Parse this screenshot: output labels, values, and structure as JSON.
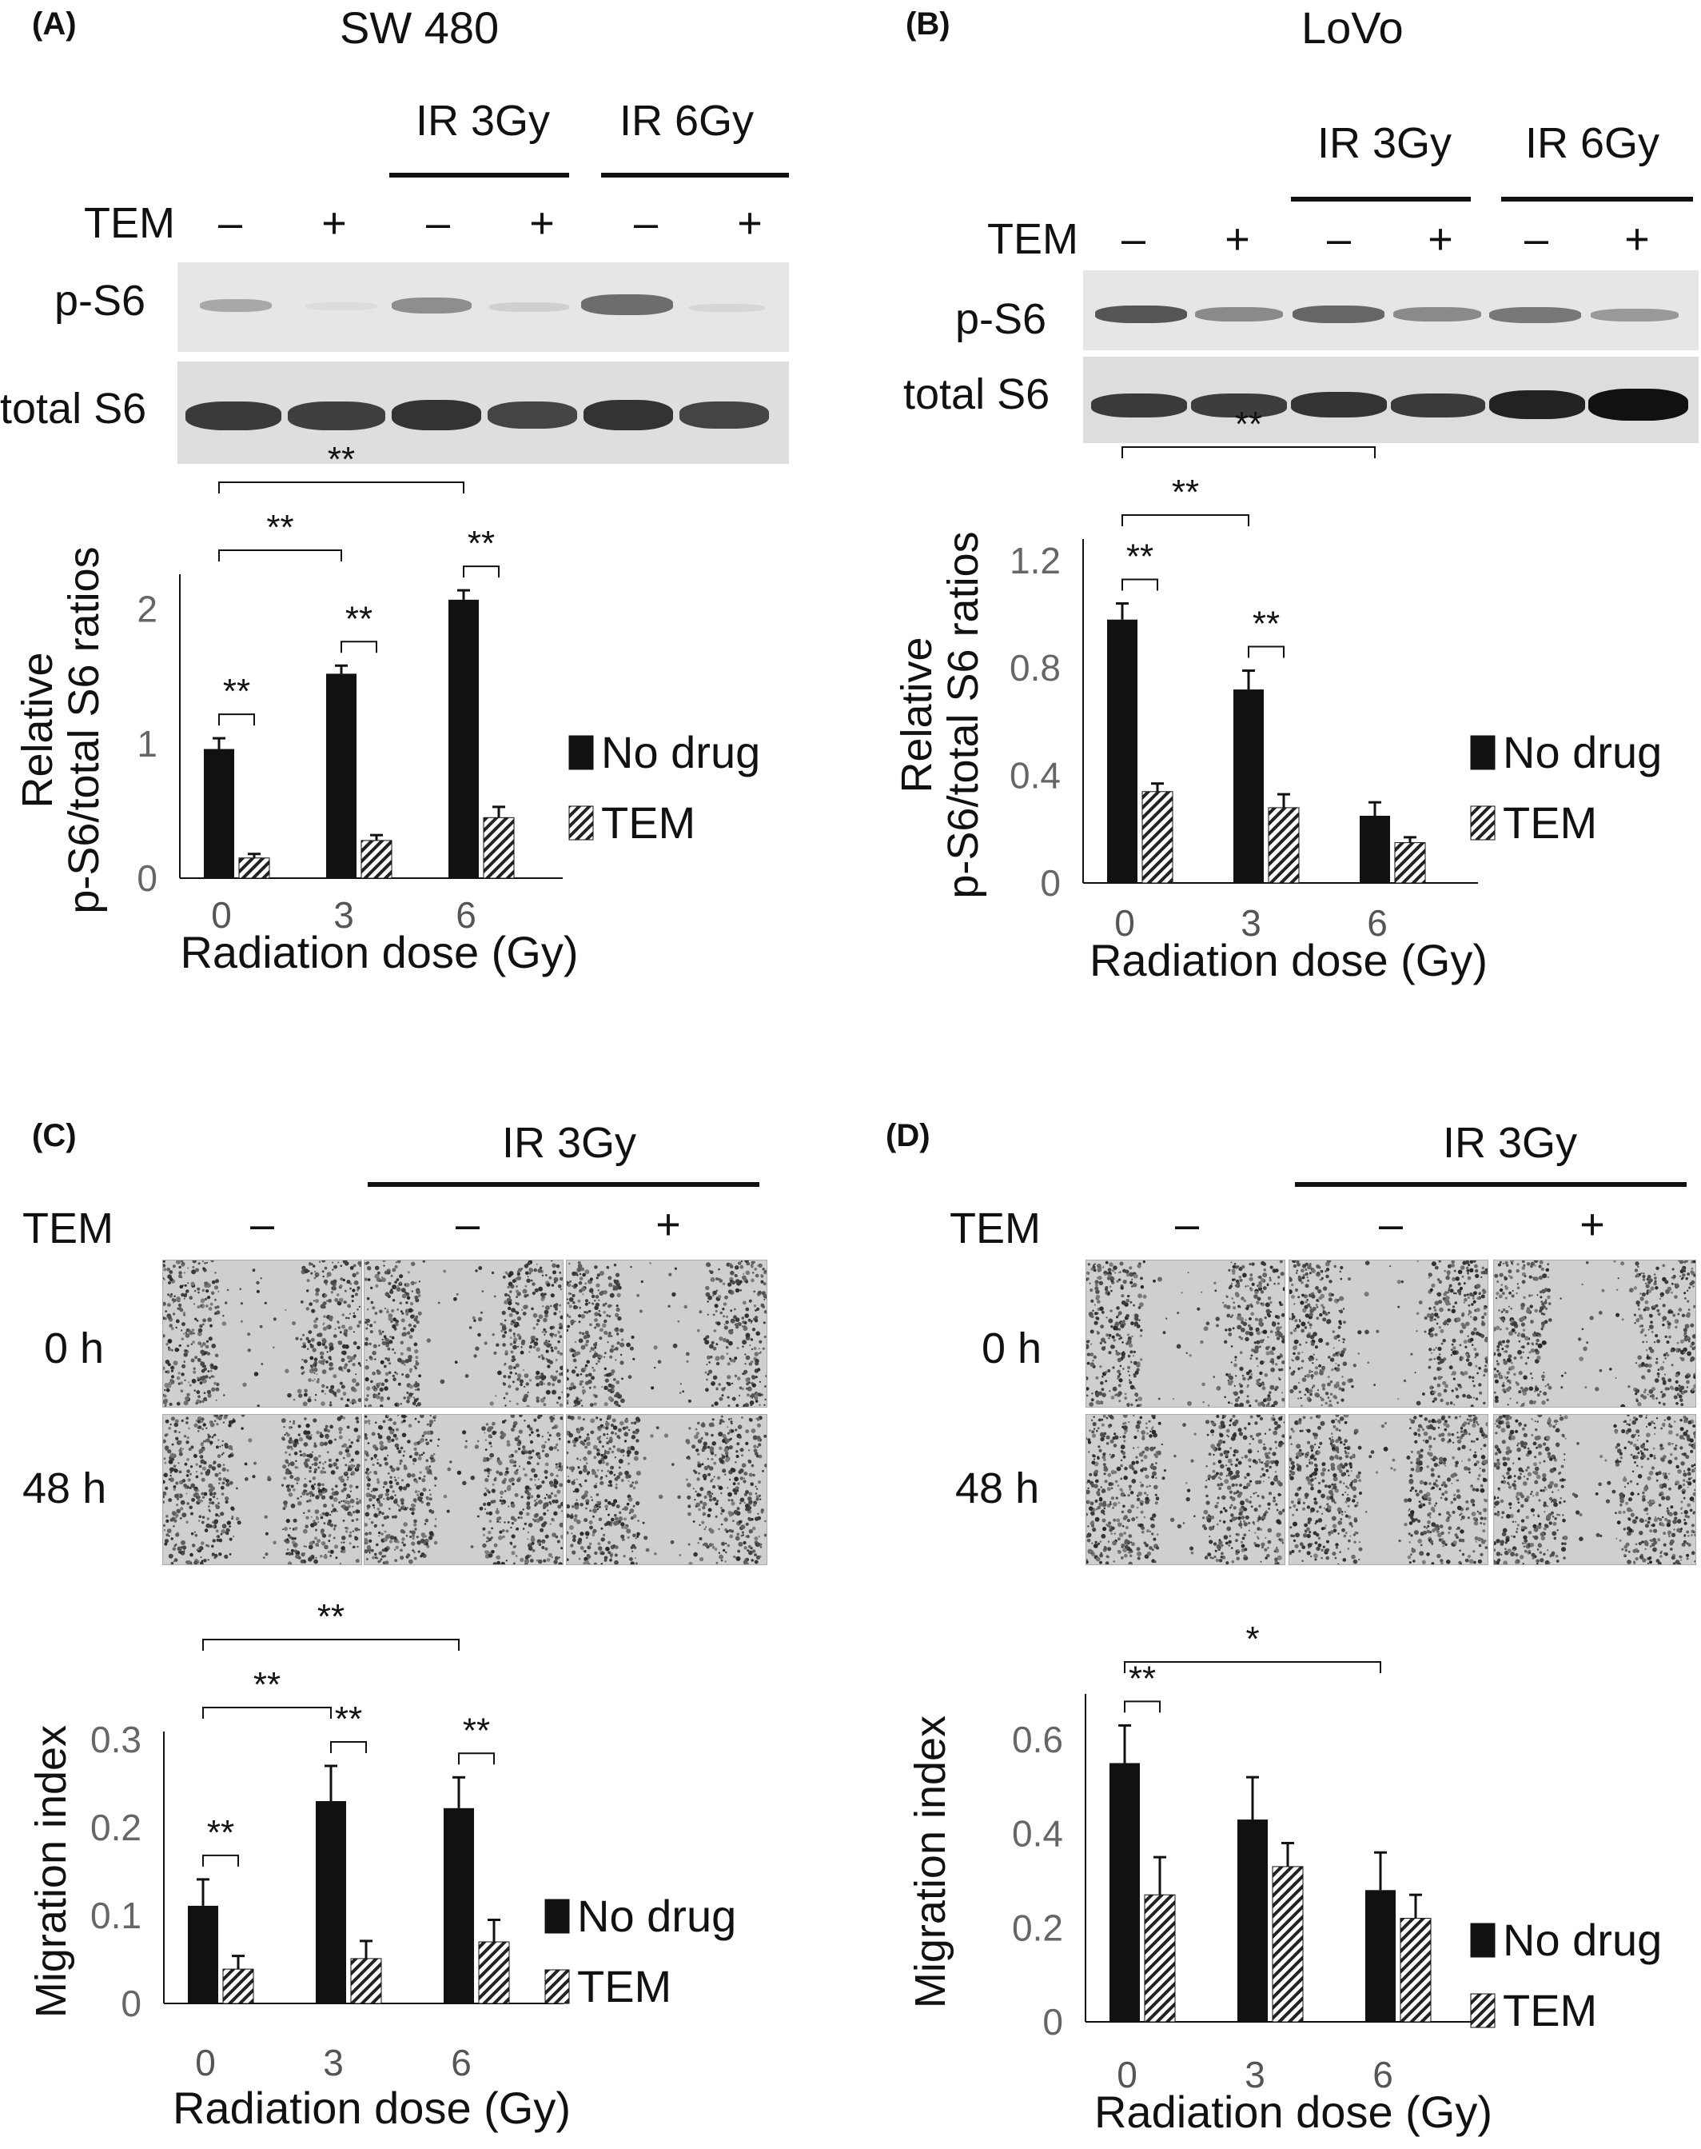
{
  "panel_a": {
    "label": "(A)",
    "title": "SW 480",
    "ir_labels": [
      "IR 3Gy",
      "IR 6Gy"
    ],
    "tem_label": "TEM",
    "signs": [
      "–",
      "+",
      "–",
      "+",
      "–",
      "+"
    ],
    "blot_labels": [
      "p-S6",
      "total S6"
    ]
  },
  "panel_b": {
    "label": "(B)",
    "title": "LoVo",
    "ir_labels": [
      "IR 3Gy",
      "IR 6Gy"
    ],
    "tem_label": "TEM",
    "signs": [
      "–",
      "+",
      "–",
      "+",
      "–",
      "+"
    ],
    "blot_labels": [
      "p-S6",
      "total S6"
    ]
  },
  "panel_c": {
    "label": "(C)",
    "ir_label": "IR 3Gy",
    "tem_label": "TEM",
    "signs": [
      "–",
      "–",
      "+"
    ],
    "time_labels": [
      "0 h",
      "48 h"
    ]
  },
  "panel_d": {
    "label": "(D)",
    "ir_label": "IR 3Gy",
    "tem_label": "TEM",
    "signs": [
      "–",
      "–",
      "+"
    ],
    "time_labels": [
      "0 h",
      "48 h"
    ]
  },
  "colors": {
    "no_drug": "#111111",
    "tem_hatch": "#222222"
  },
  "chart_data": [
    {
      "id": "A",
      "type": "bar",
      "categories": [
        "0",
        "3",
        "6"
      ],
      "ylabel_lines": [
        "Relative",
        "p-S6/total S6 ratios"
      ],
      "xlabel": "Radiation dose (Gy)",
      "ylim": [
        0,
        2.2
      ],
      "yticks": [
        "0",
        "1",
        "2"
      ],
      "ytick_values": [
        0,
        1,
        2
      ],
      "series": [
        {
          "name": "No drug",
          "values": [
            0.96,
            1.52,
            2.07
          ],
          "errors": [
            0.08,
            0.06,
            0.07
          ]
        },
        {
          "name": "TEM",
          "values": [
            0.15,
            0.28,
            0.45
          ],
          "errors": [
            0.03,
            0.04,
            0.08
          ]
        }
      ],
      "significance": [
        "**",
        "**",
        "**",
        "**",
        "**"
      ]
    },
    {
      "id": "B",
      "type": "bar",
      "categories": [
        "0",
        "3",
        "6"
      ],
      "ylabel_lines": [
        "Relative",
        "p-S6/total S6 ratios"
      ],
      "xlabel": "Radiation dose (Gy)",
      "ylim": [
        0,
        1.25
      ],
      "yticks": [
        "0",
        "0.4",
        "0.8",
        "1.2"
      ],
      "ytick_values": [
        0,
        0.4,
        0.8,
        1.2
      ],
      "series": [
        {
          "name": "No drug",
          "values": [
            0.98,
            0.72,
            0.25
          ],
          "errors": [
            0.06,
            0.07,
            0.05
          ]
        },
        {
          "name": "TEM",
          "values": [
            0.34,
            0.28,
            0.15
          ],
          "errors": [
            0.03,
            0.05,
            0.02
          ]
        }
      ],
      "significance": [
        "**",
        "**",
        "**",
        "**"
      ]
    },
    {
      "id": "C",
      "type": "bar",
      "categories": [
        "0",
        "3",
        "6"
      ],
      "ylabel": "Migration index",
      "xlabel": "Radiation dose (Gy)",
      "ylim": [
        0,
        0.3
      ],
      "yticks": [
        "0",
        "0.1",
        "0.2",
        "0.3"
      ],
      "ytick_values": [
        0,
        0.1,
        0.2,
        0.3
      ],
      "series": [
        {
          "name": "No drug",
          "values": [
            0.111,
            0.23,
            0.222
          ],
          "errors": [
            0.03,
            0.04,
            0.035
          ]
        },
        {
          "name": "TEM",
          "values": [
            0.039,
            0.051,
            0.07
          ],
          "errors": [
            0.015,
            0.02,
            0.025
          ]
        }
      ],
      "significance": [
        "**",
        "**",
        "**",
        "**",
        "**"
      ]
    },
    {
      "id": "D",
      "type": "bar",
      "categories": [
        "0",
        "3",
        "6"
      ],
      "ylabel": "Migration index",
      "xlabel": "Radiation dose (Gy)",
      "ylim": [
        0,
        0.68
      ],
      "yticks": [
        "0",
        "0.2",
        "0.4",
        "0.6"
      ],
      "ytick_values": [
        0,
        0.2,
        0.4,
        0.6
      ],
      "series": [
        {
          "name": "No drug",
          "values": [
            0.55,
            0.43,
            0.28
          ],
          "errors": [
            0.08,
            0.09,
            0.08
          ]
        },
        {
          "name": "TEM",
          "values": [
            0.27,
            0.33,
            0.22
          ],
          "errors": [
            0.08,
            0.05,
            0.05
          ]
        }
      ],
      "significance": [
        "**",
        "*"
      ]
    }
  ]
}
